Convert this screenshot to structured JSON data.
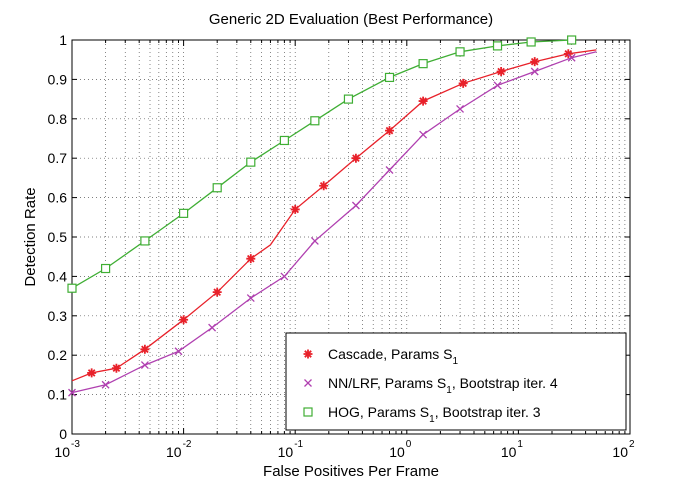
{
  "chart_data": {
    "type": "line",
    "title": "Generic 2D Evaluation (Best Performance)",
    "xlabel": "False Positives Per Frame",
    "ylabel": "Detection Rate",
    "xscale": "log",
    "xlim": [
      0.001,
      100
    ],
    "ylim": [
      0,
      1
    ],
    "grid": true,
    "legend_position": "bottom-right",
    "x_ticks": [
      {
        "base": "10",
        "exp": "-3",
        "value": 0.001
      },
      {
        "base": "10",
        "exp": "-2",
        "value": 0.01
      },
      {
        "base": "10",
        "exp": "-1",
        "value": 0.1
      },
      {
        "base": "10",
        "exp": "0",
        "value": 1
      },
      {
        "base": "10",
        "exp": "1",
        "value": 10
      },
      {
        "base": "10",
        "exp": "2",
        "value": 100
      }
    ],
    "y_ticks": [
      "0",
      "0.1",
      "0.2",
      "0.3",
      "0.4",
      "0.5",
      "0.6",
      "0.7",
      "0.8",
      "0.9",
      "1"
    ],
    "series": [
      {
        "name": "Cascade, Params S1",
        "legend_main": "Cascade, Params S",
        "legend_sub": "1",
        "legend_tail": "",
        "color": "#e8212a",
        "marker": "star",
        "x": [
          0.001,
          0.0015,
          0.0025,
          0.0045,
          0.01,
          0.02,
          0.04,
          0.06,
          0.1,
          0.18,
          0.35,
          0.7,
          1.4,
          3.2,
          7,
          14,
          28,
          50
        ],
        "y": [
          0.135,
          0.155,
          0.167,
          0.215,
          0.29,
          0.36,
          0.445,
          0.48,
          0.57,
          0.63,
          0.7,
          0.77,
          0.845,
          0.89,
          0.92,
          0.945,
          0.965,
          0.975
        ],
        "marker_x": [
          0.0015,
          0.0025,
          0.0045,
          0.01,
          0.02,
          0.04,
          0.1,
          0.18,
          0.35,
          0.7,
          1.4,
          3.2,
          7,
          14,
          28
        ],
        "marker_y": [
          0.155,
          0.167,
          0.215,
          0.29,
          0.36,
          0.445,
          0.57,
          0.63,
          0.7,
          0.77,
          0.845,
          0.89,
          0.92,
          0.945,
          0.965
        ]
      },
      {
        "name": "NN/LRF, Params S1, Bootstrap iter. 4",
        "legend_main": "NN/LRF, Params S",
        "legend_sub": "1",
        "legend_tail": ", Bootstrap iter. 4",
        "color": "#b040b0",
        "marker": "x",
        "x": [
          0.001,
          0.002,
          0.0045,
          0.009,
          0.018,
          0.04,
          0.08,
          0.15,
          0.35,
          0.7,
          1.4,
          3,
          6.5,
          14,
          30,
          50
        ],
        "y": [
          0.105,
          0.125,
          0.175,
          0.21,
          0.27,
          0.345,
          0.4,
          0.49,
          0.58,
          0.67,
          0.76,
          0.825,
          0.885,
          0.92,
          0.955,
          0.97
        ],
        "marker_x": [
          0.001,
          0.002,
          0.0045,
          0.009,
          0.018,
          0.04,
          0.08,
          0.15,
          0.35,
          0.7,
          1.4,
          3,
          6.5,
          14,
          30
        ],
        "marker_y": [
          0.105,
          0.125,
          0.175,
          0.21,
          0.27,
          0.345,
          0.4,
          0.49,
          0.58,
          0.67,
          0.76,
          0.825,
          0.885,
          0.92,
          0.955
        ]
      },
      {
        "name": "HOG, Params S1, Bootstrap iter. 3",
        "legend_main": "HOG, Params S",
        "legend_sub": "1",
        "legend_tail": ", Bootstrap iter. 3",
        "color": "#3fae34",
        "marker": "square",
        "x": [
          0.001,
          0.002,
          0.0045,
          0.01,
          0.02,
          0.04,
          0.08,
          0.15,
          0.3,
          0.7,
          1.4,
          3,
          6.5,
          13,
          30
        ],
        "y": [
          0.37,
          0.42,
          0.49,
          0.56,
          0.625,
          0.69,
          0.745,
          0.795,
          0.85,
          0.905,
          0.94,
          0.97,
          0.985,
          0.995,
          1.0
        ],
        "marker_x": [
          0.001,
          0.002,
          0.0045,
          0.01,
          0.02,
          0.04,
          0.08,
          0.15,
          0.3,
          0.7,
          1.4,
          3,
          6.5,
          13,
          30
        ],
        "marker_y": [
          0.37,
          0.42,
          0.49,
          0.56,
          0.625,
          0.69,
          0.745,
          0.795,
          0.85,
          0.905,
          0.94,
          0.97,
          0.985,
          0.995,
          1.0
        ]
      }
    ]
  }
}
